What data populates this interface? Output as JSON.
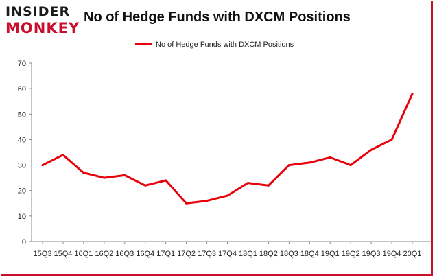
{
  "branding": {
    "logo_top": "INSIDER",
    "logo_bottom": "MONKEY"
  },
  "chart_data": {
    "type": "line",
    "title": "No of Hedge Funds with DXCM Positions",
    "xlabel": "",
    "ylabel": "",
    "ylim": [
      0,
      70
    ],
    "yticks": [
      0,
      10,
      20,
      30,
      40,
      50,
      60,
      70
    ],
    "grid": false,
    "legend_position": "top-center",
    "categories": [
      "15Q3",
      "15Q4",
      "16Q1",
      "16Q2",
      "16Q3",
      "16Q4",
      "17Q1",
      "17Q2",
      "17Q3",
      "17Q4",
      "18Q1",
      "18Q2",
      "18Q3",
      "18Q4",
      "19Q1",
      "19Q2",
      "19Q3",
      "19Q4",
      "20Q1"
    ],
    "series": [
      {
        "name": "No of Hedge Funds with DXCM Positions",
        "color": "#e8000b",
        "values": [
          30,
          34,
          27,
          25,
          26,
          22,
          24,
          15,
          16,
          18,
          23,
          22,
          30,
          31,
          33,
          30,
          36,
          40,
          58
        ]
      }
    ]
  }
}
